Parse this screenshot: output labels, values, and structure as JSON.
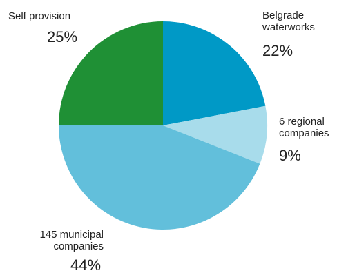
{
  "chart_data": {
    "type": "pie",
    "slices": [
      {
        "label": "Belgrade\nwaterworks",
        "value": 22,
        "value_label": "22%",
        "color": "#0099c6"
      },
      {
        "label": "6 regional\ncompanies",
        "value": 9,
        "value_label": "9%",
        "color": "#a8dceb"
      },
      {
        "label": "145 municipal\ncompanies",
        "value": 44,
        "value_label": "44%",
        "color": "#62bfdb"
      },
      {
        "label": "Self provision",
        "value": 25,
        "value_label": "25%",
        "color": "#1f9035"
      }
    ],
    "start": "top",
    "direction": "clockwise",
    "legend": "none"
  }
}
